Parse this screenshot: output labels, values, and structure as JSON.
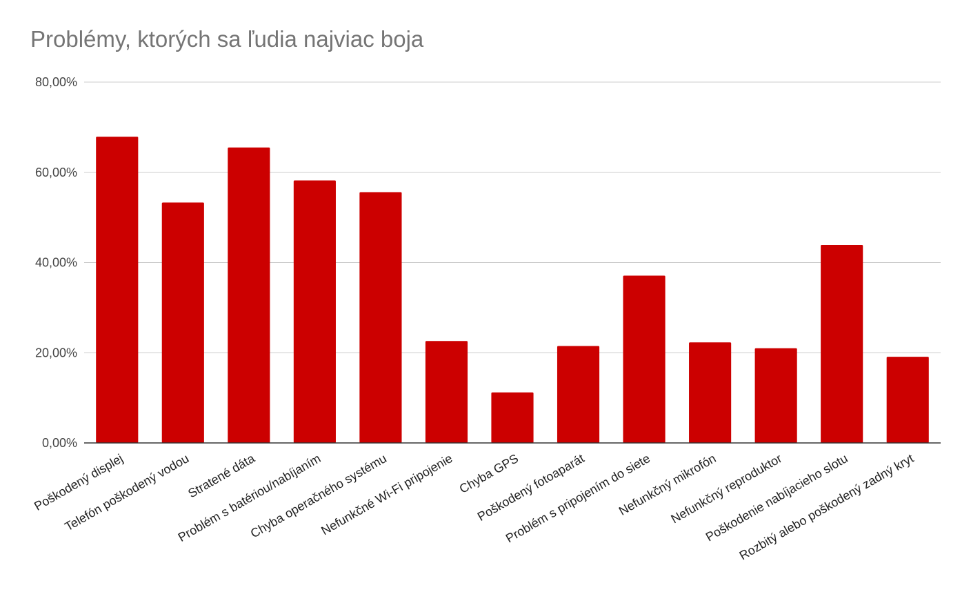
{
  "chart_data": {
    "type": "bar",
    "title": "Problémy, ktorých sa ľudia najviac boja",
    "xlabel": "",
    "ylabel": "",
    "ylim": [
      0,
      80
    ],
    "y_ticks": [
      0,
      20,
      40,
      60,
      80
    ],
    "y_tick_labels": [
      "0,00%",
      "20,00%",
      "40,00%",
      "60,00%",
      "80,00%"
    ],
    "grid": true,
    "legend": "none",
    "bar_color": "#cc0000",
    "categories": [
      "Poškodený displej",
      "Telefón poškodený vodou",
      "Stratené dáta",
      "Problém s batériou/nabíjaním",
      "Chyba operačného systému",
      "Nefunkčné Wi-Fi pripojenie",
      "Chyba GPS",
      "Poškodený fotoaparát",
      "Problém s pripojením do siete",
      "Nefunkčný mikrofón",
      "Nefunkčný reproduktor",
      "Poškodenie nabíjacieho slotu",
      "Rozbitý alebo poškodený zadný kryt"
    ],
    "values": [
      67.9,
      53.3,
      65.5,
      58.2,
      55.6,
      22.6,
      11.2,
      21.5,
      37.1,
      22.3,
      21.0,
      43.9,
      19.1
    ]
  }
}
